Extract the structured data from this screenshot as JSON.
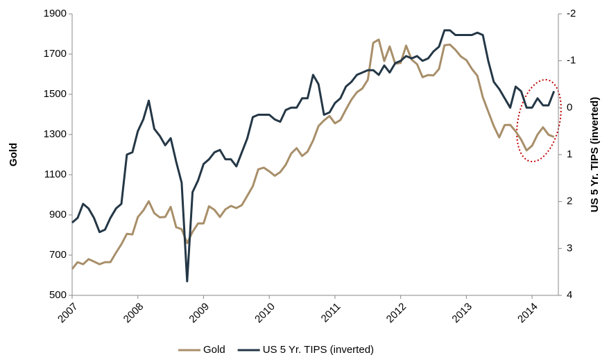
{
  "chart_data": {
    "type": "line",
    "ylabel": "Gold",
    "y2label": "US 5 Yr. TIPS (inverted)",
    "x": [
      2007,
      2007.083,
      2007.167,
      2007.25,
      2007.333,
      2007.417,
      2007.5,
      2007.583,
      2007.667,
      2007.75,
      2007.833,
      2007.917,
      2008,
      2008.083,
      2008.167,
      2008.25,
      2008.333,
      2008.417,
      2008.5,
      2008.583,
      2008.667,
      2008.75,
      2008.833,
      2008.917,
      2009,
      2009.083,
      2009.167,
      2009.25,
      2009.333,
      2009.417,
      2009.5,
      2009.583,
      2009.667,
      2009.75,
      2009.833,
      2009.917,
      2010,
      2010.083,
      2010.167,
      2010.25,
      2010.333,
      2010.417,
      2010.5,
      2010.583,
      2010.667,
      2010.75,
      2010.833,
      2010.917,
      2011,
      2011.083,
      2011.167,
      2011.25,
      2011.333,
      2011.417,
      2011.5,
      2011.583,
      2011.667,
      2011.75,
      2011.833,
      2011.917,
      2012,
      2012.083,
      2012.167,
      2012.25,
      2012.333,
      2012.417,
      2012.5,
      2012.583,
      2012.667,
      2012.75,
      2012.833,
      2012.917,
      2013,
      2013.083,
      2013.167,
      2013.25,
      2013.333,
      2013.417,
      2013.5,
      2013.583,
      2013.667,
      2013.75,
      2013.833,
      2013.917,
      2014,
      2014.083,
      2014.167,
      2014.25,
      2014.333
    ],
    "series": [
      {
        "name": "Gold",
        "color": "#a88f6a",
        "axis": "y",
        "values": [
          631,
          665,
          655,
          680,
          668,
          655,
          665,
          665,
          712,
          754,
          806,
          803,
          889,
          922,
          968,
          909,
          888,
          890,
          940,
          839,
          829,
          760,
          816,
          858,
          858,
          943,
          925,
          890,
          928,
          945,
          934,
          949,
          996,
          1043,
          1127,
          1135,
          1117,
          1095,
          1113,
          1149,
          1205,
          1232,
          1193,
          1215,
          1270,
          1342,
          1370,
          1392,
          1356,
          1372,
          1424,
          1473,
          1510,
          1529,
          1572,
          1756,
          1772,
          1665,
          1738,
          1652,
          1656,
          1742,
          1672,
          1650,
          1585,
          1596,
          1594,
          1626,
          1744,
          1747,
          1721,
          1688,
          1670,
          1627,
          1592,
          1485,
          1414,
          1342,
          1286,
          1347,
          1348,
          1316,
          1275,
          1221,
          1244,
          1300,
          1336,
          1299,
          1288
        ]
      },
      {
        "name": "US 5 Yr. TIPS (inverted)",
        "color": "#243746",
        "axis": "y2",
        "values": [
          2.45,
          2.35,
          2.05,
          2.15,
          2.35,
          2.65,
          2.6,
          2.35,
          2.15,
          2.05,
          1.0,
          0.95,
          0.5,
          0.25,
          -0.15,
          0.45,
          0.6,
          0.8,
          0.65,
          1.15,
          1.6,
          3.7,
          1.8,
          1.55,
          1.2,
          1.1,
          0.95,
          0.9,
          1.1,
          1.1,
          1.25,
          0.95,
          0.65,
          0.2,
          0.15,
          0.15,
          0.15,
          0.25,
          0.3,
          0.05,
          0.0,
          0.0,
          -0.2,
          -0.2,
          -0.7,
          -0.5,
          0.15,
          0.1,
          -0.1,
          -0.2,
          -0.45,
          -0.55,
          -0.7,
          -0.75,
          -0.8,
          -0.8,
          -0.7,
          -0.9,
          -0.75,
          -0.95,
          -1.0,
          -1.1,
          -1.05,
          -1.1,
          -1.0,
          -1.05,
          -1.2,
          -1.3,
          -1.65,
          -1.65,
          -1.55,
          -1.55,
          -1.55,
          -1.55,
          -1.6,
          -1.55,
          -1.0,
          -0.55,
          -0.4,
          -0.2,
          0.0,
          -0.45,
          -0.35,
          0.0,
          0.0,
          -0.2,
          -0.05,
          -0.05,
          -0.35
        ]
      }
    ],
    "xlim": [
      2007,
      2014.4
    ],
    "xticks": [
      2007,
      2008,
      2009,
      2010,
      2011,
      2012,
      2013,
      2014
    ],
    "ylim": [
      500,
      1900
    ],
    "yticks": [
      500,
      700,
      900,
      1100,
      1300,
      1500,
      1700,
      1900
    ],
    "y2lim": [
      -2,
      4
    ],
    "y2ticks": [
      -2,
      -1,
      0,
      1,
      2,
      3,
      4
    ],
    "y2_inverted": true,
    "grid": false,
    "legend": "bottom"
  }
}
